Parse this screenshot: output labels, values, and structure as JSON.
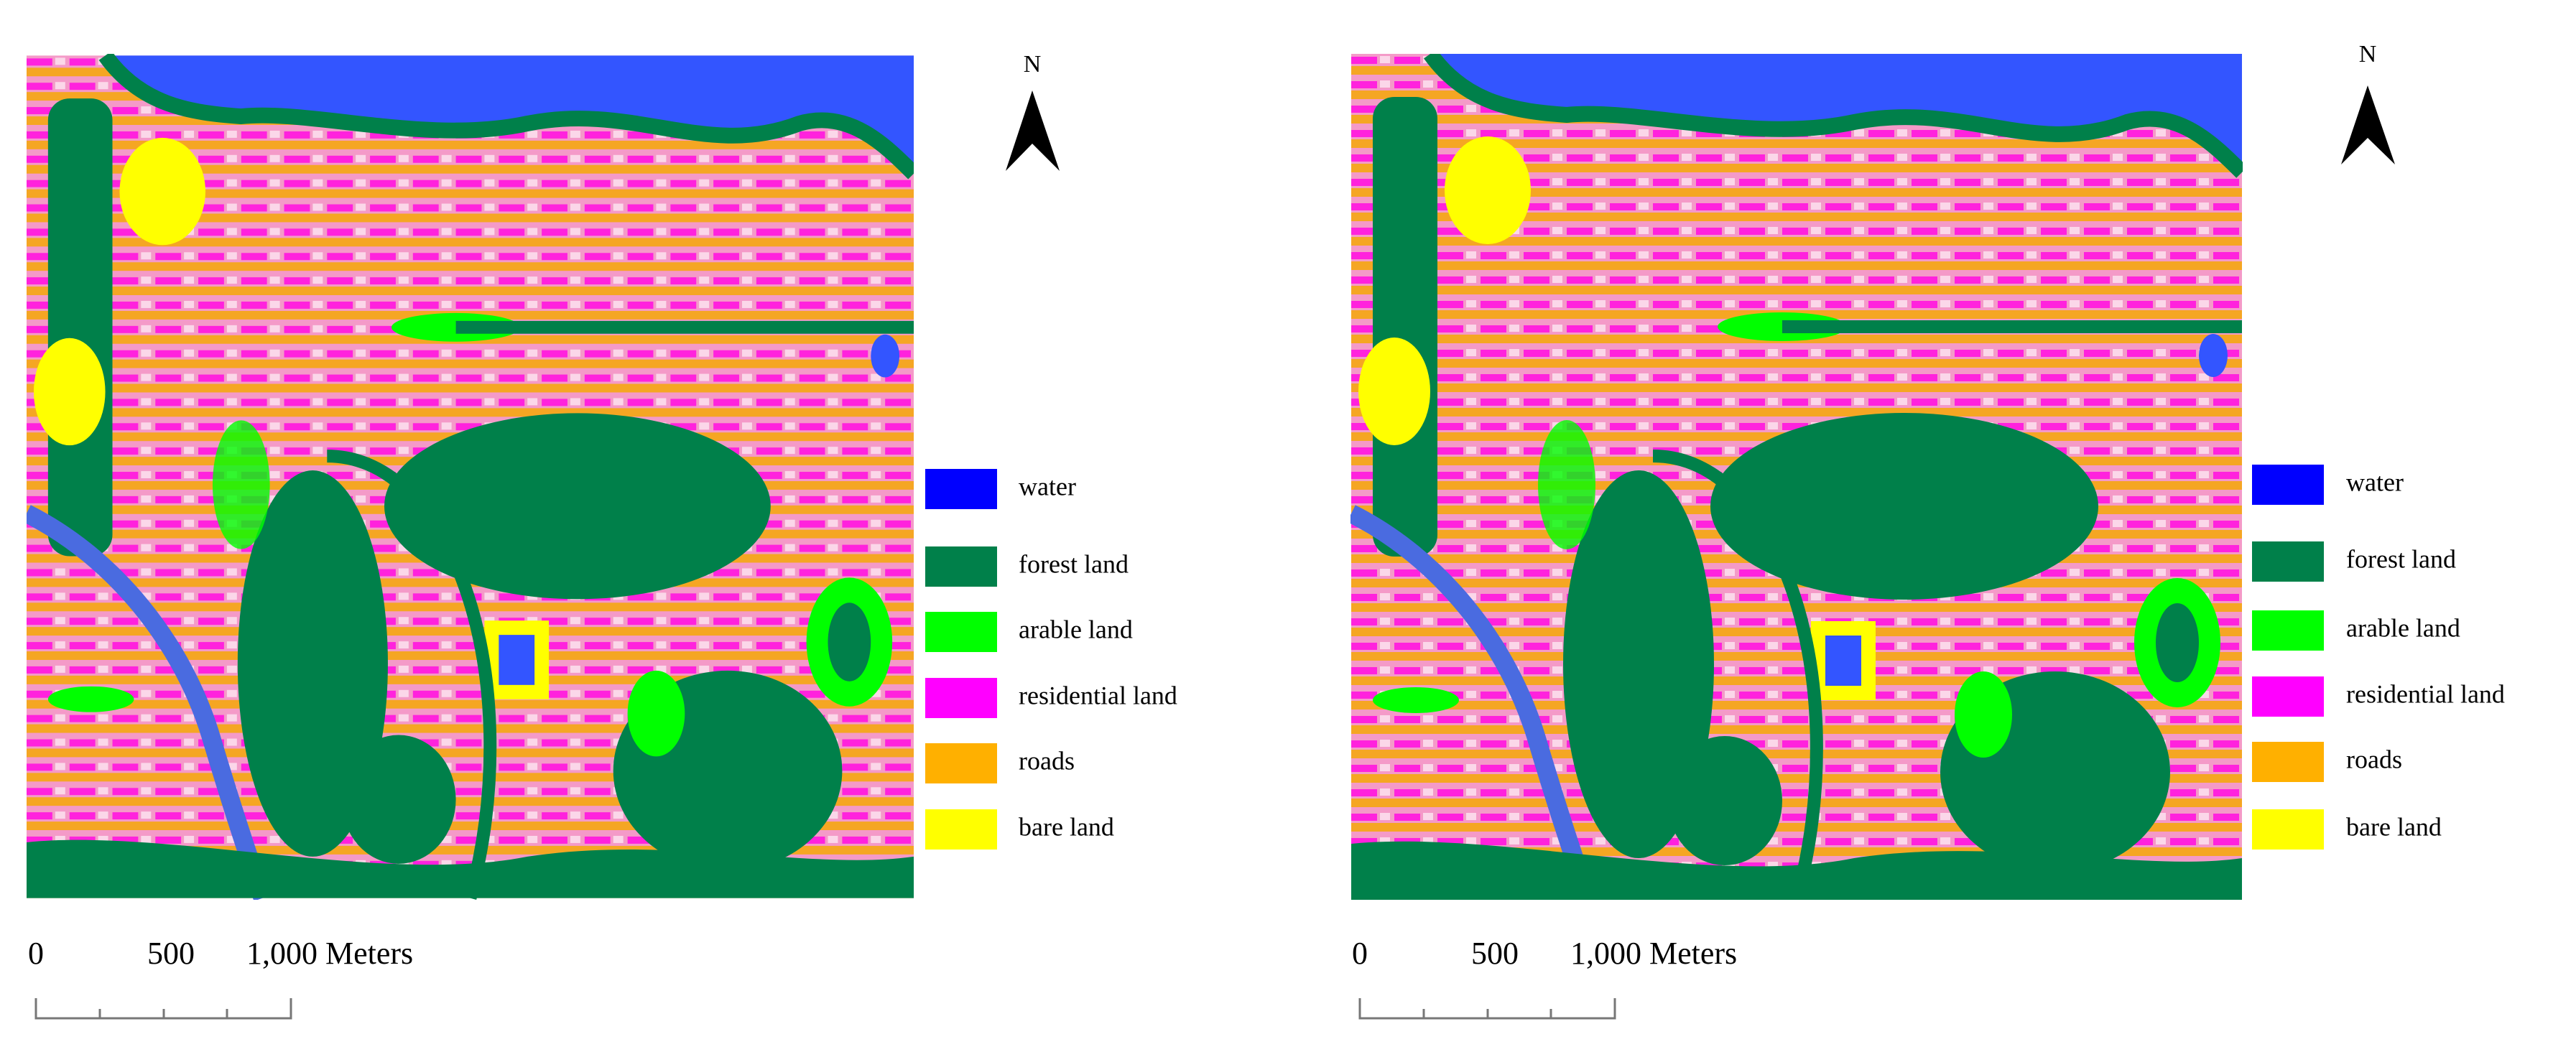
{
  "maps": [
    {
      "north": "N",
      "legend": [
        {
          "label": "water",
          "color": "#0000ff"
        },
        {
          "label": "forest land",
          "color": "#00804a"
        },
        {
          "label": "arable land",
          "color": "#00ff00"
        },
        {
          "label": "residential land",
          "color": "#ff00ff"
        },
        {
          "label": "roads",
          "color": "#ffb000"
        },
        {
          "label": "bare land",
          "color": "#ffff00"
        }
      ],
      "scale": [
        "0",
        "500",
        "1,000 Meters"
      ]
    },
    {
      "north": "N",
      "legend": [
        {
          "label": "water",
          "color": "#0000ff"
        },
        {
          "label": "forest land",
          "color": "#00804a"
        },
        {
          "label": "arable land",
          "color": "#00ff00"
        },
        {
          "label": "residential land",
          "color": "#ff00ff"
        },
        {
          "label": "roads",
          "color": "#ffb000"
        },
        {
          "label": "bare land",
          "color": "#ffff00"
        }
      ],
      "scale": [
        "0",
        "500",
        "1,000 Meters"
      ]
    }
  ]
}
